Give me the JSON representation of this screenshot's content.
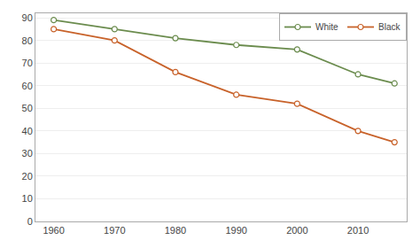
{
  "chart_data": {
    "type": "line",
    "x": [
      1960,
      1970,
      1980,
      1990,
      2000,
      2010,
      2016
    ],
    "series": [
      {
        "name": "White",
        "color": "#6b8c4e",
        "values": [
          89,
          85,
          81,
          78,
          76,
          65,
          61
        ]
      },
      {
        "name": "Black",
        "color": "#c8622a",
        "values": [
          85,
          80,
          66,
          56,
          52,
          40,
          35
        ]
      }
    ],
    "xlim": [
      1957,
      2018
    ],
    "ylim": [
      0,
      92
    ],
    "xticks": [
      1960,
      1970,
      1980,
      1990,
      2000,
      2010
    ],
    "yticks": [
      0,
      10,
      20,
      30,
      40,
      50,
      60,
      70,
      80,
      90
    ],
    "grid": "y",
    "legend": "upper right",
    "marker": "circle",
    "line_style": "solid"
  }
}
